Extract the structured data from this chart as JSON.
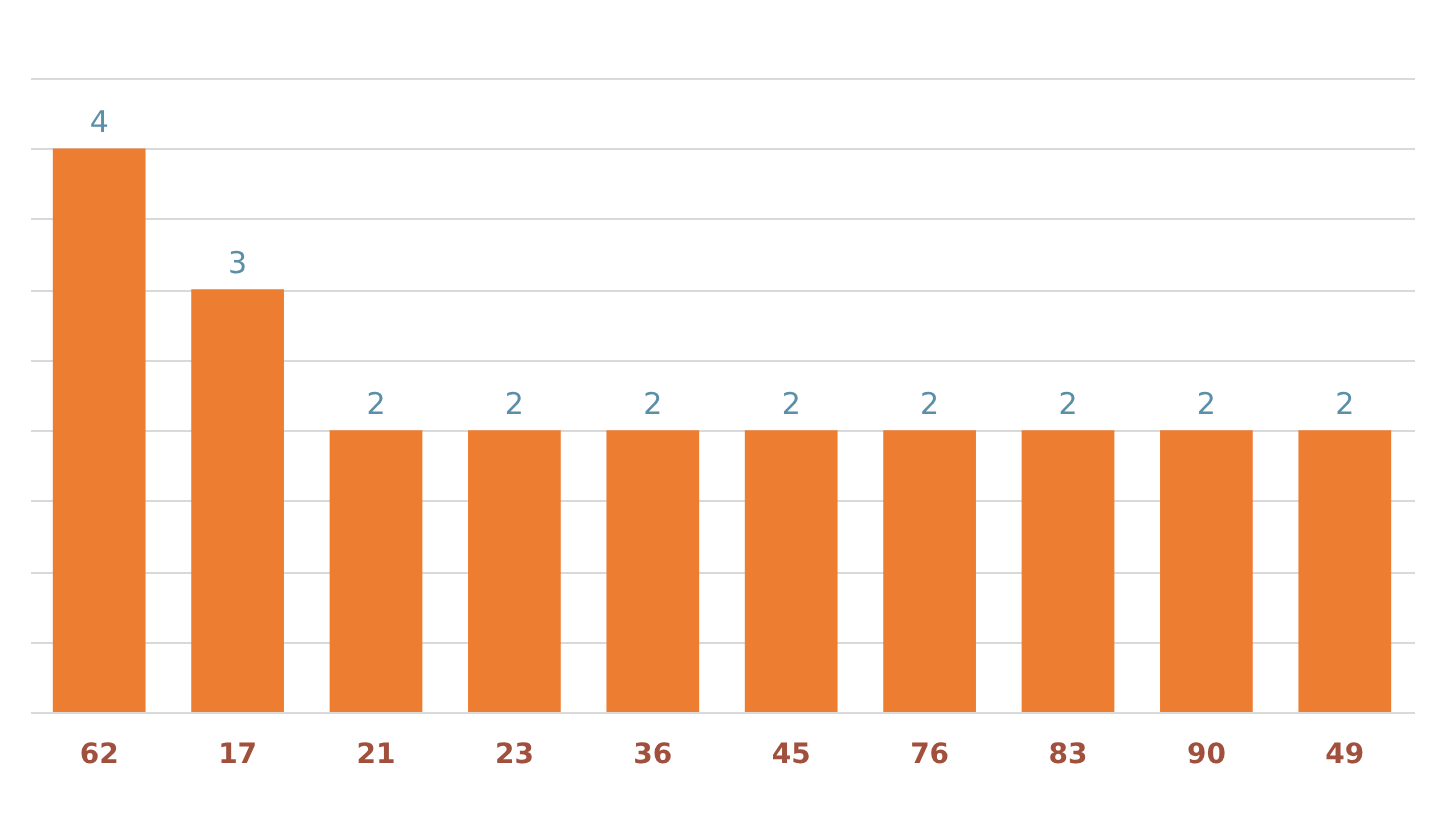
{
  "chart_data": {
    "type": "bar",
    "categories": [
      "62",
      "17",
      "21",
      "23",
      "36",
      "45",
      "76",
      "83",
      "90",
      "49"
    ],
    "values": [
      4,
      3,
      2,
      2,
      2,
      2,
      2,
      2,
      2,
      2
    ],
    "color": "#ed7d31",
    "ylim": [
      0,
      4.5
    ],
    "yticks": [
      {
        "value": 0,
        "label": null
      },
      {
        "value": 0.5,
        "label": null
      },
      {
        "value": 1,
        "label": null
      },
      {
        "value": 1.5,
        "label": null
      },
      {
        "value": 2,
        "label": null
      },
      {
        "value": 2.5,
        "label": null
      },
      {
        "value": 3,
        "label": null
      },
      {
        "value": 3.5,
        "label": null
      },
      {
        "value": 4,
        "label": null
      },
      {
        "value": 4.5,
        "label": null
      }
    ],
    "grid": "y",
    "data_labels": true,
    "tick_labels": "x"
  }
}
